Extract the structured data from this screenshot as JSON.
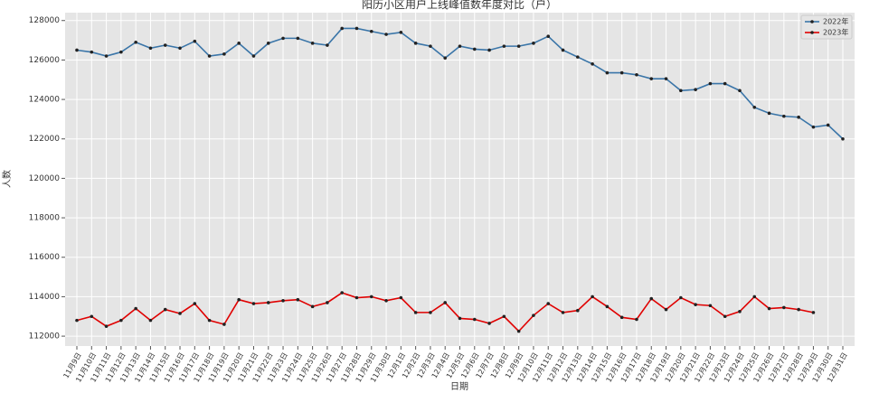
{
  "chart_data": {
    "type": "line",
    "title": "阳历小区用户上线峰值数年度对比（户）",
    "xlabel": "日期",
    "ylabel": "人数",
    "categories": [
      "11月9日",
      "11月10日",
      "11月11日",
      "11月12日",
      "11月13日",
      "11月14日",
      "11月15日",
      "11月16日",
      "11月17日",
      "11月18日",
      "11月19日",
      "11月20日",
      "11月21日",
      "11月22日",
      "11月23日",
      "11月24日",
      "11月25日",
      "11月26日",
      "11月27日",
      "11月28日",
      "11月29日",
      "11月30日",
      "12月1日",
      "12月2日",
      "12月3日",
      "12月4日",
      "12月5日",
      "12月6日",
      "12月7日",
      "12月8日",
      "12月9日",
      "12月10日",
      "12月11日",
      "12月12日",
      "12月13日",
      "12月14日",
      "12月15日",
      "12月16日",
      "12月17日",
      "12月18日",
      "12月19日",
      "12月20日",
      "12月21日",
      "12月22日",
      "12月23日",
      "12月24日",
      "12月25日",
      "12月26日",
      "12月27日",
      "12月28日",
      "12月29日",
      "12月30日",
      "12月31日"
    ],
    "series": [
      {
        "name": "2022年",
        "color": "#3a75a8",
        "values": [
          126500,
          126400,
          126200,
          126400,
          126900,
          126600,
          126750,
          126600,
          126950,
          126200,
          126300,
          126850,
          126200,
          126850,
          127100,
          127100,
          126850,
          126750,
          127600,
          127600,
          127450,
          127300,
          127400,
          126850,
          126700,
          126100,
          126700,
          126550,
          126500,
          126700,
          126700,
          126850,
          127200,
          126500,
          126150,
          125800,
          125350,
          125350,
          125250,
          125050,
          125050,
          124450,
          124500,
          124800,
          124800,
          124450,
          123600,
          123300,
          123150,
          123100,
          122600,
          122700,
          122000
        ]
      },
      {
        "name": "2023年",
        "color": "#e00000",
        "values": [
          112800,
          113000,
          112500,
          112800,
          113400,
          112800,
          113350,
          113150,
          113650,
          112800,
          112600,
          113850,
          113650,
          113700,
          113800,
          113850,
          113500,
          113700,
          114200,
          113950,
          114000,
          113800,
          113950,
          113200,
          113200,
          113700,
          112900,
          112850,
          112650,
          113000,
          112250,
          113050,
          113650,
          113200,
          113300,
          114000,
          113500,
          112950,
          112850,
          113900,
          113350,
          113950,
          113600,
          113550,
          113000,
          113250,
          114000,
          113400,
          113450,
          113350,
          113200,
          null,
          null
        ]
      }
    ],
    "ylim": [
      111500,
      128400
    ],
    "yticks": [
      112000,
      114000,
      116000,
      118000,
      120000,
      122000,
      124000,
      126000,
      128000
    ],
    "grid": true,
    "legend": "upper right"
  }
}
